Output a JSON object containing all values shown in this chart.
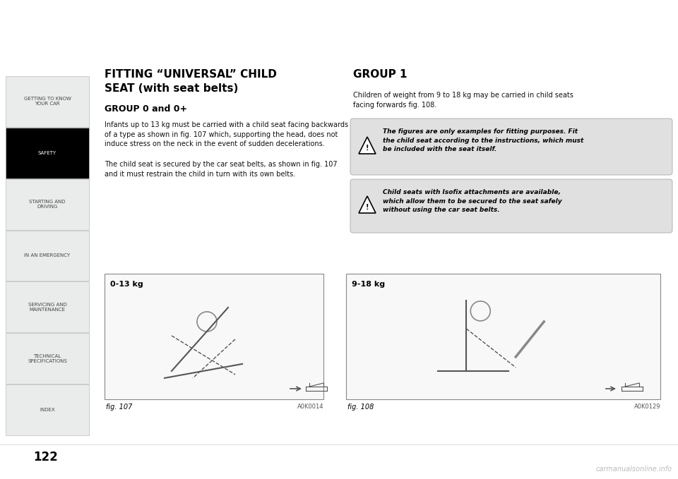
{
  "bg_color": "#ffffff",
  "page_number": "122",
  "main_title_line1": "FITTING “UNIVERSAL” CHILD",
  "main_title_line2": "SEAT (with seat belts)",
  "section1_title": "GROUP 0 and 0+",
  "section1_body1": "Infants up to 13 kg must be carried with a child seat facing backwards\nof a type as shown in fig. 107 which, supporting the head, does not\ninduce stress on the neck in the event of sudden decelerations.",
  "section1_body2": "The child seat is secured by the car seat belts, as shown in fig. 107\nand it must restrain the child in turn with its own belts.",
  "section2_title": "GROUP 1",
  "section2_body": "Children of weight from 9 to 18 kg may be carried in child seats\nfacing forwards fig. 108.",
  "warning1_text": "The figures are only examples for fitting purposes. Fit\nthe child seat according to the instructions, which must\nbe included with the seat itself.",
  "warning2_text": "Child seats with Isofix attachments are available,\nwhich allow them to be secured to the seat safely\nwithout using the car seat belts.",
  "fig107_label": "fig. 107",
  "fig107_code": "A0K0014",
  "fig107_weight": "0-13 kg",
  "fig108_label": "fig. 108",
  "fig108_code": "A0K0129",
  "fig108_weight": "9-18 kg",
  "sidebar_items": [
    {
      "label": "GETTING TO KNOW\nYOUR CAR",
      "active": false
    },
    {
      "label": "SAFETY",
      "active": true
    },
    {
      "label": "STARTING AND\nDRIVING",
      "active": false
    },
    {
      "label": "IN AN EMERGENCY",
      "active": false
    },
    {
      "label": "SERVICING AND\nMAINTENANCE",
      "active": false
    },
    {
      "label": "TECHNICAL\nSPECIFICATIONS",
      "active": false
    },
    {
      "label": "INDEX",
      "active": false
    }
  ],
  "sidebar_bg_active": "#000000",
  "sidebar_bg_inactive": "#eaecec",
  "sidebar_text_active": "#ffffff",
  "sidebar_text_inactive": "#444444",
  "sidebar_border": "#bbbbbb",
  "watermark": "carmanualsonline.info"
}
